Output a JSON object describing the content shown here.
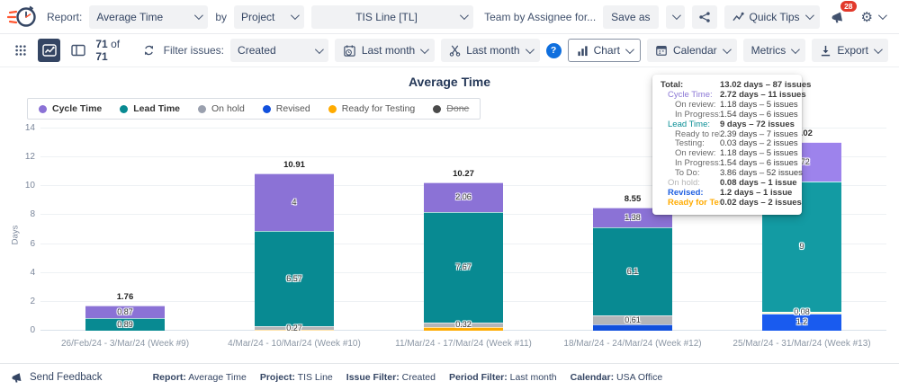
{
  "header": {
    "report_label": "Report:",
    "report_value": "Average Time",
    "by_label": "by",
    "group_value": "Project",
    "project_value": "TIS Line [TL]",
    "saved_report_name": "Team by Assignee for...",
    "save_as_label": "Save as",
    "quick_tips_label": "Quick Tips",
    "notification_count": "28"
  },
  "toolbar": {
    "issues_shown": "71",
    "of_label": "of",
    "issues_total": "71",
    "filter_issues_label": "Filter issues:",
    "issue_filter_value": "Created",
    "period_filter_value": "Last month",
    "workdays_filter_value": "Last month",
    "chart_label": "Chart",
    "calendar_label": "Calendar",
    "metrics_label": "Metrics",
    "export_label": "Export"
  },
  "icons": {
    "logo": "stopwatch-logo",
    "gear": "⚙",
    "help": "?",
    "share": "share-nodes",
    "notifications": "megaphone with badge",
    "send_feedback": "megaphone"
  },
  "chart": {
    "title": "Average Time",
    "legend": [
      {
        "label": "Cycle Time",
        "color": "#8b72d6",
        "bold": true,
        "struck": false
      },
      {
        "label": "Lead Time",
        "color": "#088a92",
        "bold": true,
        "struck": false
      },
      {
        "label": "On hold",
        "color": "#9aa0ae",
        "bold": false,
        "struck": false
      },
      {
        "label": "Revised",
        "color": "#1150dd",
        "bold": false,
        "struck": false
      },
      {
        "label": "Ready for Testing",
        "color": "#ffab00",
        "bold": false,
        "struck": false
      },
      {
        "label": "Done",
        "color": "#4a4a4a",
        "bold": false,
        "struck": true
      }
    ]
  },
  "chart_data": {
    "type": "bar",
    "stacked": true,
    "title": "Average Time",
    "xlabel": "",
    "ylabel": "Days",
    "ylim": [
      0,
      14
    ],
    "yticks": [
      0,
      2,
      4,
      6,
      8,
      10,
      12,
      14
    ],
    "grid": true,
    "legend_position": "top-left",
    "categories": [
      "26/Feb/24 - 3/Mar/24 (Week #9)",
      "4/Mar/24 - 10/Mar/24 (Week #10)",
      "11/Mar/24 - 17/Mar/24 (Week #11)",
      "18/Mar/24 - 24/Mar/24 (Week #12)",
      "25/Mar/24 - 31/Mar/24 (Week #13)"
    ],
    "series": [
      {
        "name": "Revised",
        "color": "#1150dd",
        "values": [
          0,
          0,
          0,
          0.46,
          1.2
        ],
        "labels": [
          "",
          "",
          "",
          "",
          "1.2"
        ]
      },
      {
        "name": "Ready for Testing",
        "color": "#ffab00",
        "values": [
          0,
          0.07,
          0.22,
          0,
          0.02
        ],
        "labels": [
          "",
          "",
          "",
          "",
          ""
        ]
      },
      {
        "name": "On hold",
        "color": "#b3b5b9",
        "values": [
          0,
          0.27,
          0.32,
          0.61,
          0.08
        ],
        "labels": [
          "",
          "0.27",
          "0.32",
          "0.61",
          "0.08"
        ]
      },
      {
        "name": "Lead Time",
        "color": "#088a92",
        "values": [
          0.89,
          6.57,
          7.67,
          6.1,
          9
        ],
        "labels": [
          "0.89",
          "6.57",
          "7.67",
          "6.1",
          "9"
        ]
      },
      {
        "name": "Cycle Time",
        "color": "#8b72d6",
        "values": [
          0.87,
          4,
          2.06,
          1.38,
          2.72
        ],
        "labels": [
          "0.87",
          "4",
          "2.06",
          "1.38",
          "2.72"
        ]
      }
    ],
    "totals": [
      "1.76",
      "10.91",
      "10.27",
      "8.55",
      "13.02"
    ],
    "highlighted_bar_index": 4
  },
  "tooltip": {
    "rows": [
      {
        "label": "Total:",
        "value": "13.02 days – 87 issues",
        "indent": 0,
        "label_color": "#3c3c3c",
        "label_bold": true,
        "value_bold": true
      },
      {
        "label": "Cycle Time:",
        "value": "2.72 days – 11 issues",
        "indent": 1,
        "label_color": "#8b77d5",
        "label_bold": false,
        "value_bold": true
      },
      {
        "label": "On review:",
        "value": "1.18 days – 5 issues",
        "indent": 2,
        "label_color": "#6b6b6b",
        "label_bold": false,
        "value_bold": false
      },
      {
        "label": "In Progress:",
        "value": "1.54 days – 6 issues",
        "indent": 2,
        "label_color": "#6b6b6b",
        "label_bold": false,
        "value_bold": false
      },
      {
        "label": "Lead Time:",
        "value": "9 days – 72 issues",
        "indent": 1,
        "label_color": "#0a8f96",
        "label_bold": false,
        "value_bold": true
      },
      {
        "label": "Ready to rele...",
        "value": "2.39 days – 7 issues",
        "indent": 2,
        "label_color": "#6b6b6b",
        "label_bold": false,
        "value_bold": false
      },
      {
        "label": "Testing:",
        "value": "0.03 days – 2 issues",
        "indent": 2,
        "label_color": "#6b6b6b",
        "label_bold": false,
        "value_bold": false
      },
      {
        "label": "On review:",
        "value": "1.18 days – 5 issues",
        "indent": 2,
        "label_color": "#6b6b6b",
        "label_bold": false,
        "value_bold": false
      },
      {
        "label": "In Progress:",
        "value": "1.54 days – 6 issues",
        "indent": 2,
        "label_color": "#6b6b6b",
        "label_bold": false,
        "value_bold": false
      },
      {
        "label": "To Do:",
        "value": "3.86 days – 52 issues",
        "indent": 2,
        "label_color": "#6b6b6b",
        "label_bold": false,
        "value_bold": false
      },
      {
        "label": "On hold:",
        "value": "0.08 days – 1 issue",
        "indent": 1,
        "label_color": "#b5b5b5",
        "label_bold": false,
        "value_bold": true
      },
      {
        "label": "Revised:",
        "value": "1.2 days – 1 issue",
        "indent": 1,
        "label_color": "#2160e0",
        "label_bold": true,
        "value_bold": true
      },
      {
        "label": "Ready for Testi...",
        "value": "0.02 days – 2 issues",
        "indent": 1,
        "label_color": "#ffab00",
        "label_bold": true,
        "value_bold": true
      }
    ]
  },
  "footer": {
    "send_feedback_label": "Send Feedback",
    "items": [
      {
        "key": "Report:",
        "value": "Average Time"
      },
      {
        "key": "Project:",
        "value": "TIS Line"
      },
      {
        "key": "Issue Filter:",
        "value": "Created"
      },
      {
        "key": "Period Filter:",
        "value": "Last month"
      },
      {
        "key": "Calendar:",
        "value": "USA Office"
      }
    ]
  }
}
